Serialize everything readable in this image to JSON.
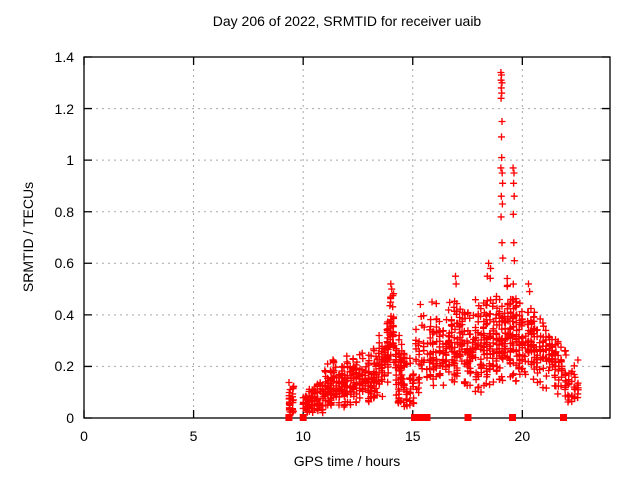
{
  "chart_data": {
    "type": "scatter",
    "title": "Day 206 of 2022, SRMTID for receiver uaib",
    "xlabel": "GPS time / hours",
    "ylabel": "SRMTID / TECUs",
    "xlim": [
      0,
      24
    ],
    "ylim": [
      0,
      1.4
    ],
    "xticks": {
      "values": [
        0,
        5,
        10,
        15,
        20
      ],
      "labels": [
        "0",
        "5",
        "10",
        "15",
        "20"
      ]
    },
    "yticks": {
      "values": [
        0,
        0.2,
        0.4,
        0.6,
        0.8,
        1.0,
        1.2,
        1.4
      ],
      "labels": [
        "0",
        "0.2",
        "0.4",
        "0.6",
        "0.8",
        "1",
        "1.2",
        "1.4"
      ]
    },
    "grid": "dashed major ticks",
    "legend": "none",
    "marker": {
      "shape": "plus",
      "color": "#ff0000",
      "size": 7
    },
    "zero_marker": {
      "shape": "filled-square",
      "color": "#ff0000",
      "size": 7
    },
    "colors": {
      "axis": "#000000",
      "grid": "#a8a8a8",
      "background": "#ffffff",
      "series": "#ff0000"
    },
    "data_extent": {
      "x_first": 9.3,
      "x_last": 22.6,
      "y_max": 1.34
    },
    "seed": 20220706,
    "cluster_fields": [
      "x_start",
      "x_end",
      "count",
      "y_center_start",
      "y_center_end",
      "y_std",
      "y_min",
      "y_max"
    ],
    "distribution_clusters": [
      [
        9.3,
        9.62,
        28,
        0.07,
        0.06,
        0.035,
        0.02,
        0.16
      ],
      [
        9.95,
        10.18,
        14,
        0.05,
        0.05,
        0.02,
        0.02,
        0.1
      ],
      [
        10.1,
        10.95,
        90,
        0.055,
        0.09,
        0.03,
        0.02,
        0.17
      ],
      [
        10.95,
        11.45,
        70,
        0.1,
        0.13,
        0.045,
        0.03,
        0.23
      ],
      [
        11.45,
        11.95,
        65,
        0.12,
        0.11,
        0.04,
        0.04,
        0.2
      ],
      [
        11.95,
        12.5,
        70,
        0.13,
        0.16,
        0.05,
        0.05,
        0.28
      ],
      [
        12.5,
        13.05,
        60,
        0.14,
        0.15,
        0.05,
        0.05,
        0.3
      ],
      [
        13.05,
        13.65,
        70,
        0.16,
        0.21,
        0.05,
        0.07,
        0.33
      ],
      [
        13.65,
        13.92,
        45,
        0.25,
        0.28,
        0.055,
        0.12,
        0.38
      ],
      [
        13.92,
        14.18,
        42,
        0.34,
        0.33,
        0.08,
        0.16,
        0.52
      ],
      [
        14.18,
        14.65,
        70,
        0.17,
        0.15,
        0.07,
        0.04,
        0.34
      ],
      [
        14.65,
        15.1,
        30,
        0.13,
        0.11,
        0.05,
        0.04,
        0.26
      ],
      [
        15.1,
        15.58,
        30,
        0.22,
        0.28,
        0.08,
        0.08,
        0.44
      ],
      [
        15.58,
        16.15,
        48,
        0.27,
        0.28,
        0.08,
        0.12,
        0.45
      ],
      [
        16.15,
        16.6,
        40,
        0.24,
        0.26,
        0.07,
        0.1,
        0.4
      ],
      [
        16.6,
        17.2,
        70,
        0.28,
        0.3,
        0.08,
        0.12,
        0.55
      ],
      [
        17.2,
        17.8,
        70,
        0.26,
        0.25,
        0.07,
        0.1,
        0.43
      ],
      [
        17.8,
        18.3,
        60,
        0.27,
        0.28,
        0.08,
        0.1,
        0.5
      ],
      [
        18.3,
        18.75,
        55,
        0.3,
        0.32,
        0.1,
        0.12,
        0.62
      ],
      [
        18.75,
        19.15,
        60,
        0.3,
        0.32,
        0.09,
        0.12,
        0.55
      ],
      [
        19.15,
        19.5,
        50,
        0.34,
        0.33,
        0.1,
        0.14,
        0.6
      ],
      [
        19.5,
        19.8,
        40,
        0.33,
        0.31,
        0.08,
        0.14,
        0.52
      ],
      [
        19.8,
        20.6,
        95,
        0.3,
        0.29,
        0.07,
        0.14,
        0.5
      ],
      [
        20.6,
        21.3,
        60,
        0.26,
        0.22,
        0.06,
        0.1,
        0.4
      ],
      [
        21.3,
        21.85,
        50,
        0.22,
        0.19,
        0.06,
        0.09,
        0.33
      ],
      [
        21.9,
        22.6,
        45,
        0.17,
        0.12,
        0.05,
        0.06,
        0.28
      ]
    ],
    "outlier_points": [
      [
        19.02,
        1.34
      ],
      [
        19.05,
        1.33
      ],
      [
        19.03,
        1.31
      ],
      [
        19.07,
        1.3
      ],
      [
        19.04,
        1.28
      ],
      [
        19.06,
        1.26
      ],
      [
        19.03,
        1.24
      ],
      [
        19.07,
        1.15
      ],
      [
        19.05,
        1.09
      ],
      [
        19.06,
        1.01
      ],
      [
        19.02,
        0.97
      ],
      [
        19.08,
        0.95
      ],
      [
        19.1,
        0.91
      ],
      [
        19.04,
        0.86
      ],
      [
        19.09,
        0.83
      ],
      [
        19.03,
        0.78
      ],
      [
        19.07,
        0.68
      ],
      [
        19.11,
        0.62
      ],
      [
        19.58,
        0.97
      ],
      [
        19.62,
        0.95
      ],
      [
        19.6,
        0.91
      ],
      [
        19.63,
        0.86
      ],
      [
        19.59,
        0.79
      ],
      [
        19.61,
        0.68
      ],
      [
        19.64,
        0.61
      ],
      [
        20.28,
        0.52
      ],
      [
        20.33,
        0.49
      ],
      [
        18.46,
        0.6
      ],
      [
        18.55,
        0.58
      ],
      [
        18.4,
        0.55
      ],
      [
        16.95,
        0.55
      ],
      [
        16.98,
        0.52
      ],
      [
        14.0,
        0.52
      ],
      [
        14.04,
        0.5
      ],
      [
        15.88,
        0.45
      ],
      [
        15.35,
        0.44
      ]
    ],
    "zero_marker_x": [
      9.35,
      10.0,
      15.08,
      15.25,
      15.42,
      15.65,
      17.52,
      19.55,
      21.88
    ]
  }
}
